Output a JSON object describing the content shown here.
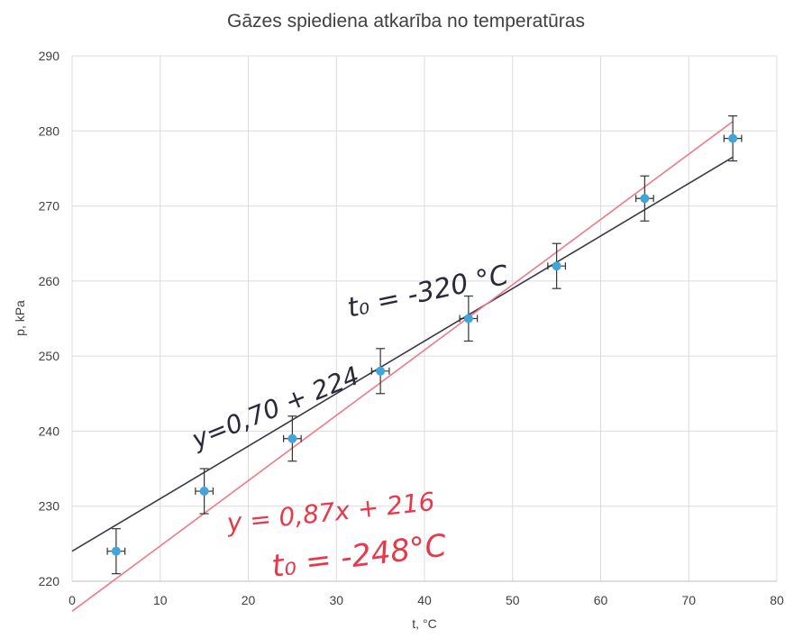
{
  "chart_data": {
    "type": "scatter",
    "title": "Gāzes spiediena atkarība no temperatūras",
    "xlabel": "t, °C",
    "ylabel": "p, kPa",
    "xlim": [
      0,
      80
    ],
    "ylim": [
      220,
      290
    ],
    "x_ticks": [
      0,
      10,
      20,
      30,
      40,
      50,
      60,
      70,
      80
    ],
    "y_ticks": [
      220,
      230,
      240,
      250,
      260,
      270,
      280,
      290
    ],
    "grid": true,
    "series": [
      {
        "x": [
          5,
          15,
          25,
          35,
          45,
          55,
          65,
          75
        ],
        "y": [
          224,
          232,
          239,
          248,
          255,
          262,
          271,
          279
        ],
        "y_error": 3,
        "x_error": 1,
        "color": "#41a5dc"
      }
    ],
    "fit_lines": [
      {
        "slope": 0.7,
        "intercept": 224,
        "x_range": [
          0,
          75
        ],
        "color": "#3a3a46"
      },
      {
        "slope": 0.87,
        "intercept": 216,
        "x_range": [
          0,
          75
        ],
        "color": "#f07888"
      }
    ],
    "annotations": [
      {
        "text": "y=0,70 + 224",
        "color": "#2a2a38"
      },
      {
        "text": "t₀ = -320 °C",
        "color": "#2a2a38"
      },
      {
        "text": "y = 0,87x + 216",
        "color": "#e8394a"
      },
      {
        "text": "t₀ = -248°C",
        "color": "#e8394a"
      }
    ]
  }
}
